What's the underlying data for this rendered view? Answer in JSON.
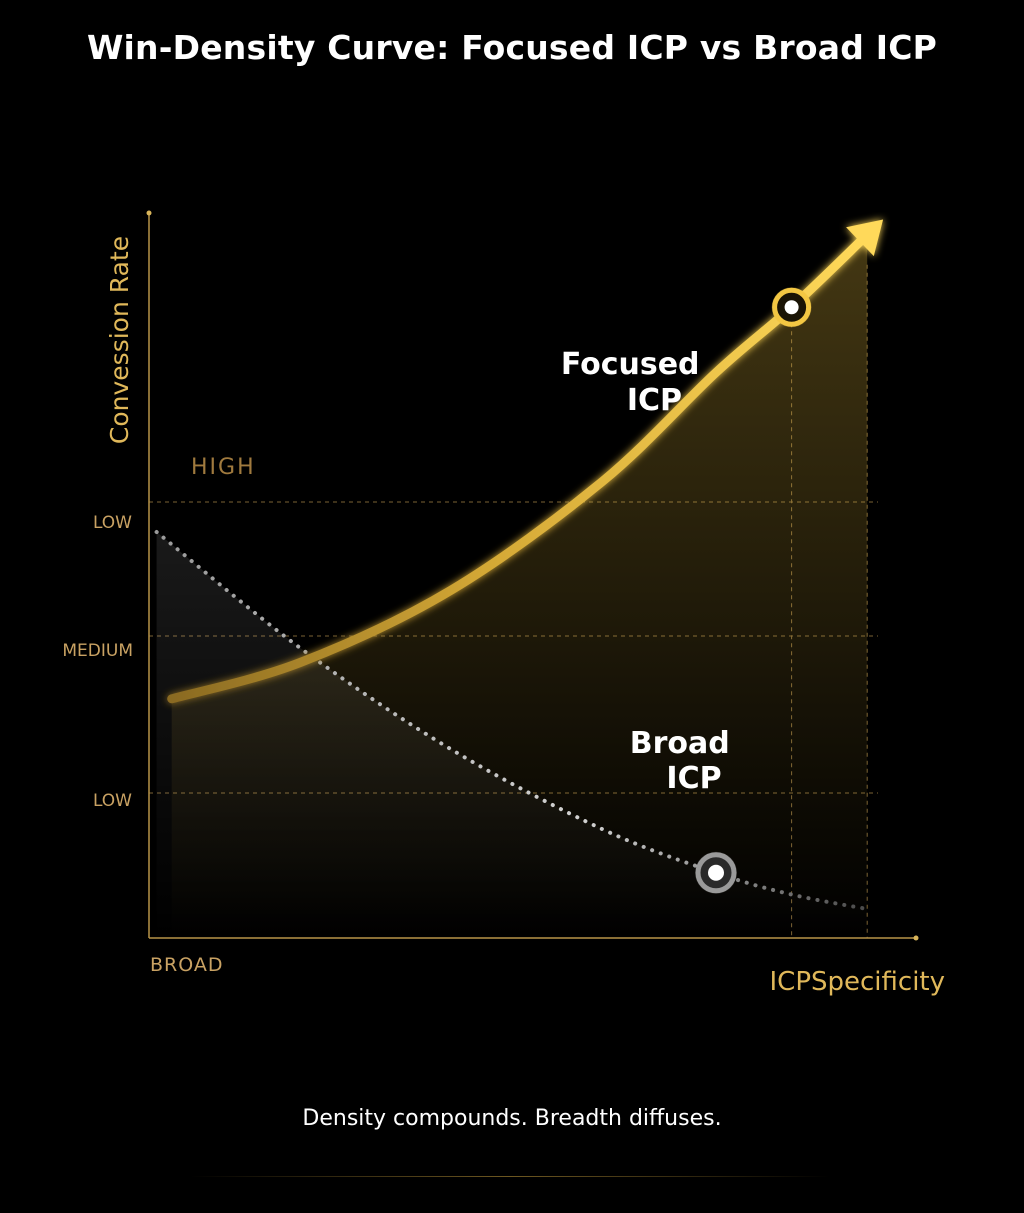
{
  "chart_data": {
    "type": "line",
    "title": "Win-Density Curve: Focused ICP vs Broad ICP",
    "xlabel": "ICPSpecificity",
    "ylabel": "Convession Rate",
    "x_start_label": "BROAD",
    "high_label": "HIGH",
    "y_tick_labels": [
      "LOW",
      "MEDIUM",
      "LOW"
    ],
    "xlim": [
      0,
      100
    ],
    "ylim": [
      0,
      100
    ],
    "grid": "dashed",
    "series": [
      {
        "name": "Focused ICP",
        "style": "solid-arrow",
        "color": "#f3c743",
        "x": [
          3,
          20,
          40,
          60,
          75,
          85,
          95
        ],
        "y": [
          33,
          38,
          48,
          63,
          78,
          87,
          97
        ],
        "marker": {
          "x": 85,
          "y": 87
        },
        "label_lines": [
          "Focused",
          "ICP"
        ]
      },
      {
        "name": "Broad ICP",
        "style": "dotted",
        "color": "#c8c8c8",
        "x": [
          1,
          20,
          40,
          60,
          75,
          85,
          95
        ],
        "y": [
          56,
          40,
          26,
          15,
          9,
          6,
          4
        ],
        "marker": {
          "x": 75,
          "y": 9
        },
        "label_lines": [
          "Broad",
          "ICP"
        ]
      }
    ]
  },
  "caption": "Density compounds. Breadth diffuses.",
  "colors": {
    "gold": "#f3c743",
    "gold_dim": "#b89448",
    "grey": "#c8c8c8",
    "background": "#000000"
  }
}
